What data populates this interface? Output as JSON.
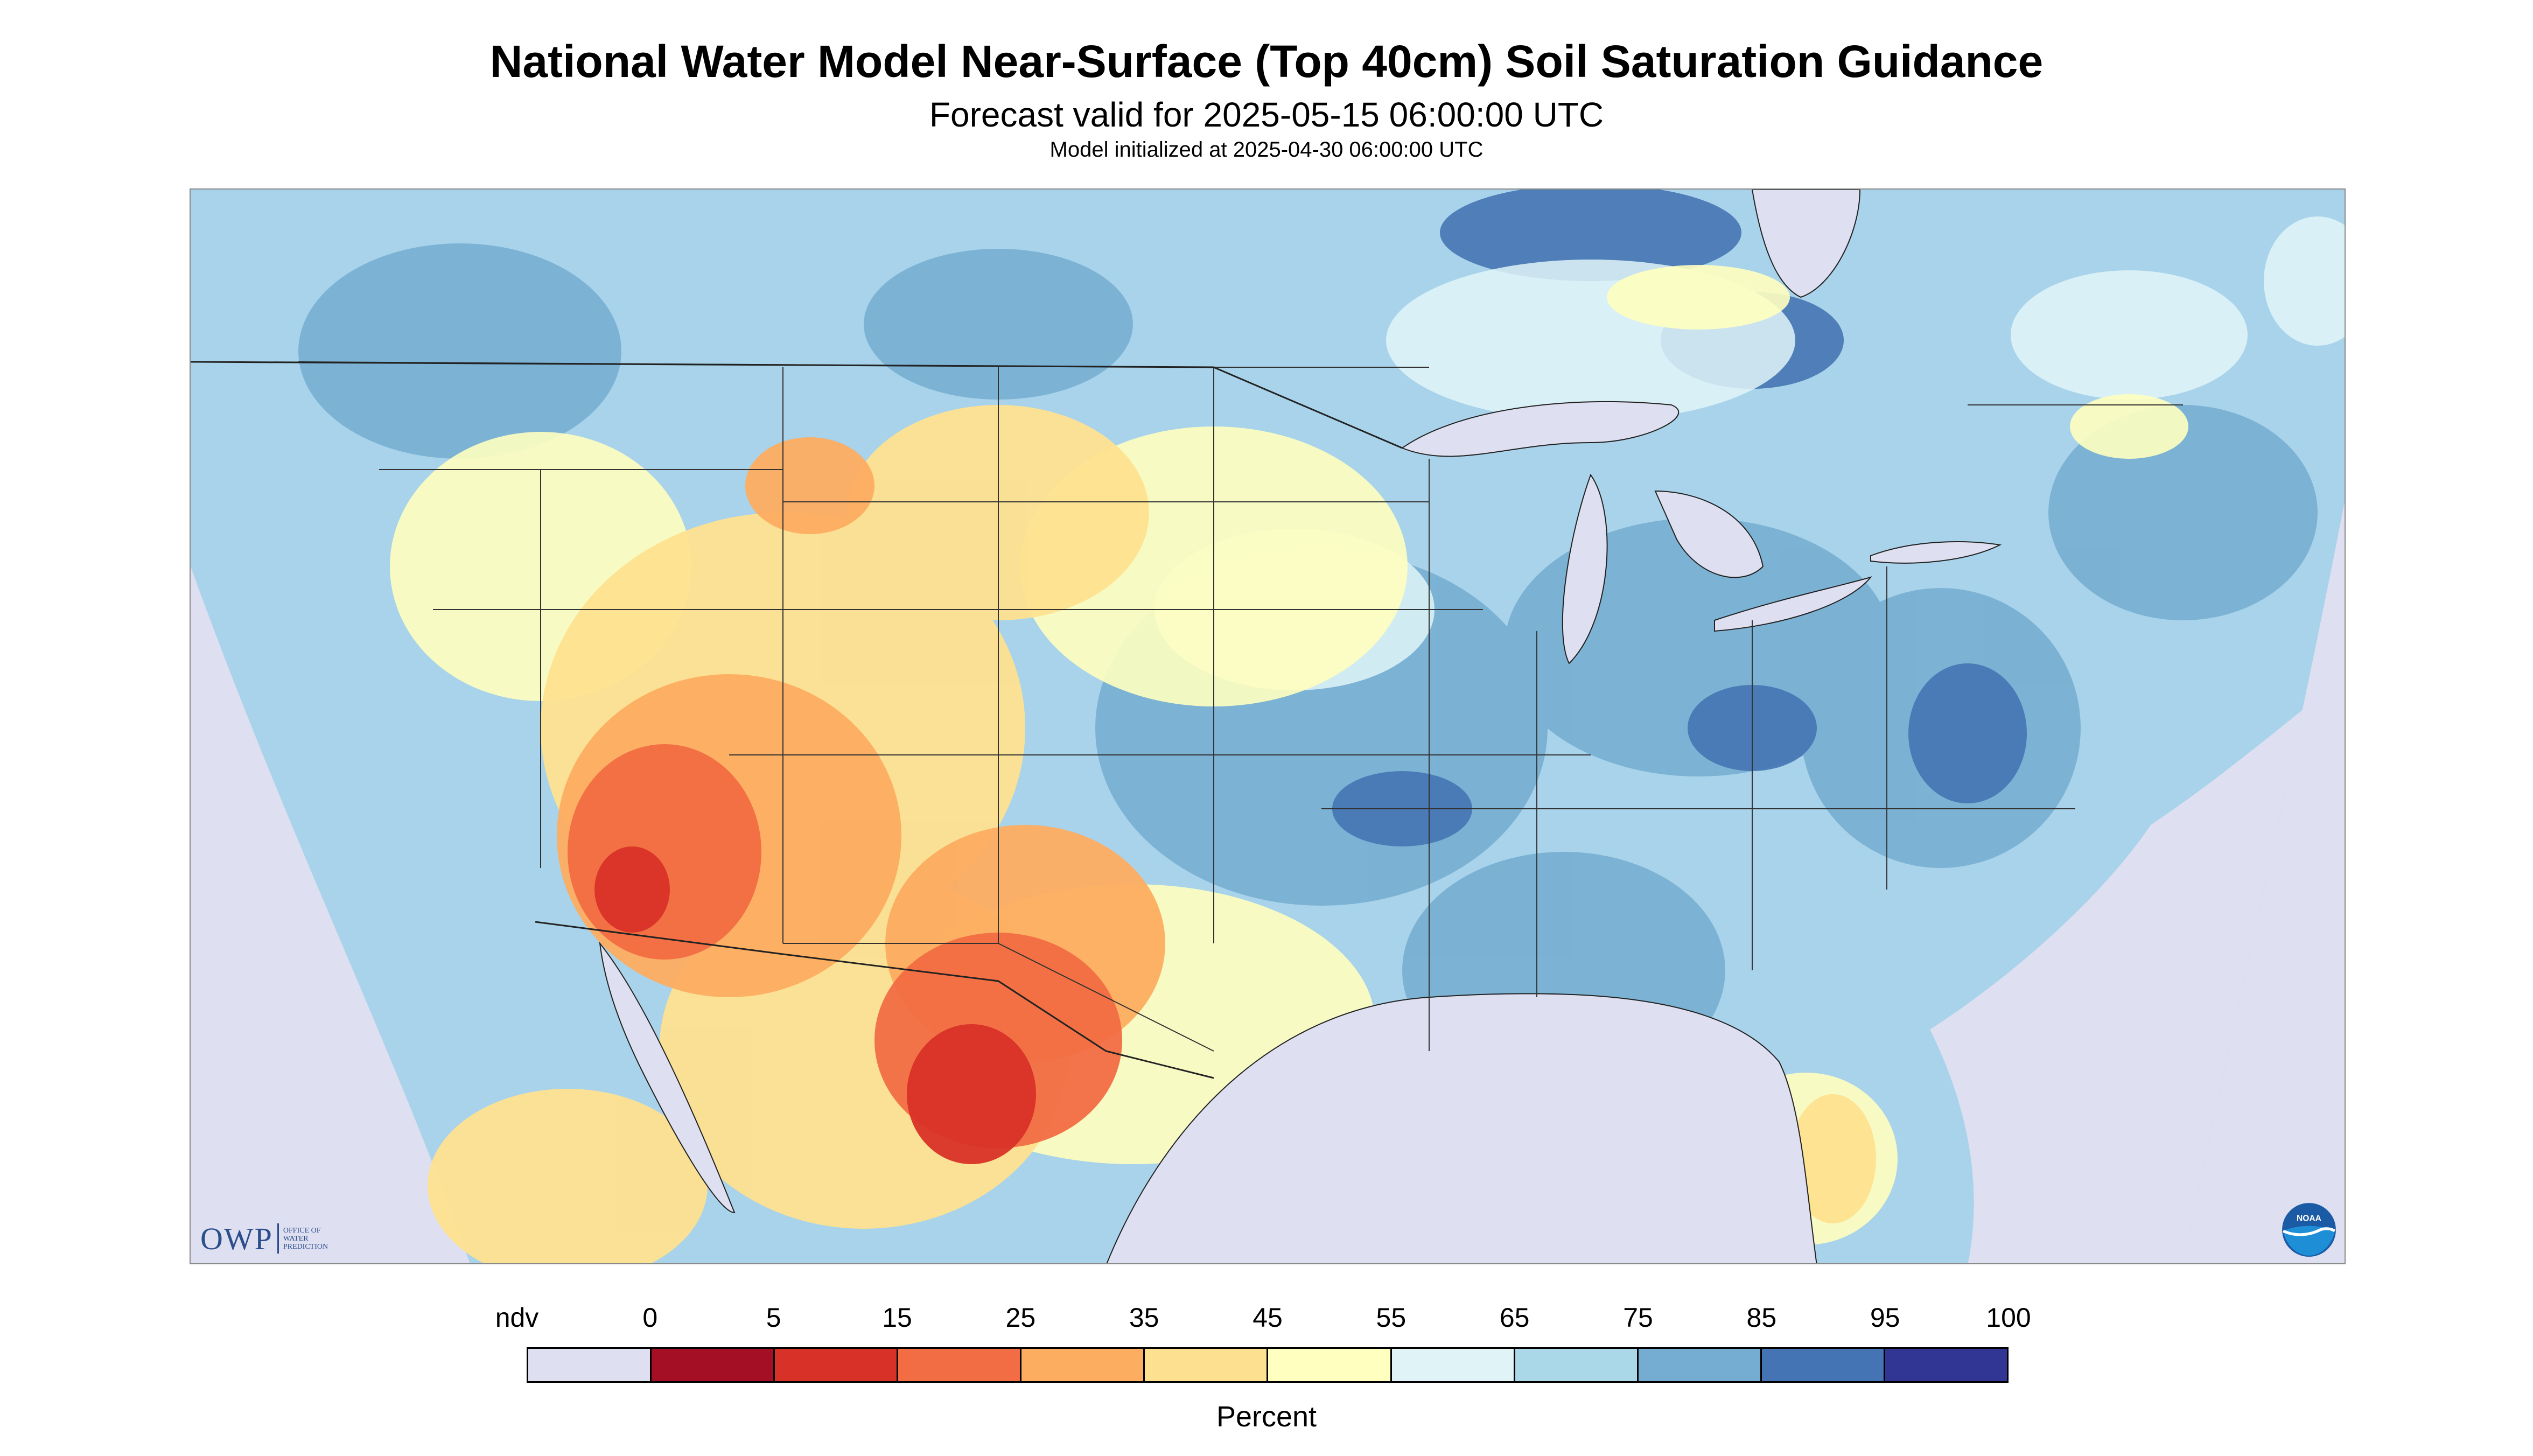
{
  "header": {
    "title": "National Water Model Near-Surface (Top 40cm) Soil Saturation Guidance",
    "valid_time": "Forecast valid for 2025-05-15 06:00:00 UTC",
    "init_time": "Model initialized at 2025-04-30 06:00:00 UTC"
  },
  "logos": {
    "owp_short": "OWP",
    "owp_lines": [
      "OFFICE OF",
      "WATER",
      "PREDICTION"
    ],
    "noaa": "NOAA"
  },
  "legend": {
    "labels": [
      "ndv",
      "0",
      "5",
      "15",
      "25",
      "35",
      "45",
      "55",
      "65",
      "75",
      "85",
      "95",
      "100"
    ],
    "colors": [
      "#dedff0",
      "#a50f26",
      "#d83127",
      "#f26d43",
      "#fdad60",
      "#fee190",
      "#ffffbf",
      "#e0f4f8",
      "#abd8e9",
      "#74add1",
      "#4574b4",
      "#313695"
    ],
    "unit": "Percent"
  },
  "map": {
    "no_data_color": "#dedff0",
    "water_color": "#dedff0",
    "background_color": "#a8d3ea"
  }
}
